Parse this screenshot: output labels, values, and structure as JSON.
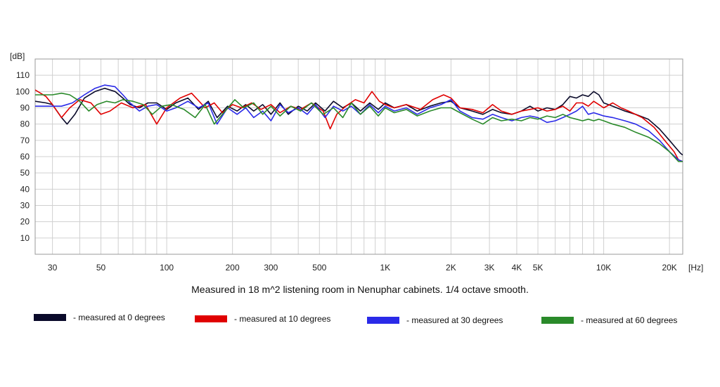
{
  "chart_data": {
    "type": "line",
    "title": "Measured in 18 m^2 listening room in Nenuphar cabinets. 1/4 octave smooth.",
    "ylabel": "[dB]",
    "xunit": "[Hz]",
    "xscale": "log",
    "xlim": [
      25,
      23000
    ],
    "ylim": [
      0,
      120
    ],
    "grid": true,
    "y_ticks": [
      {
        "v": 10,
        "label": "10"
      },
      {
        "v": 20,
        "label": "20"
      },
      {
        "v": 30,
        "label": "30"
      },
      {
        "v": 40,
        "label": "40"
      },
      {
        "v": 50,
        "label": "50"
      },
      {
        "v": 60,
        "label": "60"
      },
      {
        "v": 70,
        "label": "70"
      },
      {
        "v": 80,
        "label": "80"
      },
      {
        "v": 90,
        "label": "90"
      },
      {
        "v": 100,
        "label": "100"
      },
      {
        "v": 110,
        "label": "110"
      }
    ],
    "x_ticks": [
      {
        "v": 30,
        "label": "30"
      },
      {
        "v": 50,
        "label": "50"
      },
      {
        "v": 100,
        "label": "100"
      },
      {
        "v": 200,
        "label": "200"
      },
      {
        "v": 300,
        "label": "300"
      },
      {
        "v": 500,
        "label": "500"
      },
      {
        "v": 1000,
        "label": "1K"
      },
      {
        "v": 2000,
        "label": "2K"
      },
      {
        "v": 3000,
        "label": "3K"
      },
      {
        "v": 4000,
        "label": "4K"
      },
      {
        "v": 5000,
        "label": "5K"
      },
      {
        "v": 10000,
        "label": "10K"
      },
      {
        "v": 20000,
        "label": "20K"
      }
    ],
    "legend_position": "bottom",
    "series": [
      {
        "name": "- measured at 0 degrees",
        "color": "#0a0a2a",
        "points": [
          [
            25,
            94
          ],
          [
            28,
            93
          ],
          [
            30,
            92
          ],
          [
            33,
            84
          ],
          [
            35,
            80
          ],
          [
            38,
            86
          ],
          [
            42,
            96
          ],
          [
            47,
            100
          ],
          [
            52,
            102
          ],
          [
            58,
            100
          ],
          [
            63,
            96
          ],
          [
            68,
            92
          ],
          [
            75,
            90
          ],
          [
            82,
            93
          ],
          [
            90,
            93
          ],
          [
            100,
            89
          ],
          [
            110,
            93
          ],
          [
            125,
            96
          ],
          [
            140,
            89
          ],
          [
            155,
            94
          ],
          [
            170,
            84
          ],
          [
            190,
            91
          ],
          [
            210,
            88
          ],
          [
            230,
            92
          ],
          [
            250,
            88
          ],
          [
            275,
            92
          ],
          [
            300,
            86
          ],
          [
            330,
            93
          ],
          [
            360,
            86
          ],
          [
            400,
            91
          ],
          [
            440,
            88
          ],
          [
            480,
            93
          ],
          [
            530,
            88
          ],
          [
            580,
            94
          ],
          [
            640,
            90
          ],
          [
            700,
            93
          ],
          [
            770,
            88
          ],
          [
            850,
            93
          ],
          [
            930,
            89
          ],
          [
            1000,
            93
          ],
          [
            1100,
            90
          ],
          [
            1250,
            92
          ],
          [
            1400,
            88
          ],
          [
            1600,
            91
          ],
          [
            1800,
            93
          ],
          [
            2000,
            94
          ],
          [
            2200,
            90
          ],
          [
            2500,
            88
          ],
          [
            2800,
            86
          ],
          [
            3100,
            89
          ],
          [
            3400,
            87
          ],
          [
            3800,
            86
          ],
          [
            4200,
            88
          ],
          [
            4600,
            91
          ],
          [
            5000,
            88
          ],
          [
            5500,
            90
          ],
          [
            6000,
            89
          ],
          [
            6500,
            92
          ],
          [
            7000,
            97
          ],
          [
            7500,
            96
          ],
          [
            8000,
            98
          ],
          [
            8500,
            97
          ],
          [
            9000,
            100
          ],
          [
            9500,
            98
          ],
          [
            10000,
            93
          ],
          [
            11000,
            91
          ],
          [
            12500,
            88
          ],
          [
            14000,
            86
          ],
          [
            16000,
            83
          ],
          [
            18000,
            77
          ],
          [
            20000,
            70
          ],
          [
            21500,
            65
          ],
          [
            22500,
            62
          ],
          [
            23000,
            61
          ]
        ]
      },
      {
        "name": "- measured at 10 degrees",
        "color": "#e00000",
        "points": [
          [
            25,
            101
          ],
          [
            28,
            97
          ],
          [
            30,
            92
          ],
          [
            33,
            84
          ],
          [
            36,
            90
          ],
          [
            40,
            95
          ],
          [
            45,
            93
          ],
          [
            50,
            86
          ],
          [
            55,
            88
          ],
          [
            62,
            93
          ],
          [
            70,
            90
          ],
          [
            80,
            92
          ],
          [
            90,
            80
          ],
          [
            100,
            90
          ],
          [
            115,
            96
          ],
          [
            130,
            99
          ],
          [
            150,
            90
          ],
          [
            165,
            93
          ],
          [
            180,
            87
          ],
          [
            200,
            92
          ],
          [
            220,
            90
          ],
          [
            245,
            93
          ],
          [
            270,
            89
          ],
          [
            300,
            92
          ],
          [
            330,
            87
          ],
          [
            370,
            91
          ],
          [
            410,
            89
          ],
          [
            460,
            93
          ],
          [
            520,
            88
          ],
          [
            560,
            77
          ],
          [
            600,
            86
          ],
          [
            660,
            91
          ],
          [
            730,
            95
          ],
          [
            800,
            93
          ],
          [
            870,
            100
          ],
          [
            940,
            94
          ],
          [
            1000,
            92
          ],
          [
            1100,
            90
          ],
          [
            1250,
            92
          ],
          [
            1450,
            89
          ],
          [
            1650,
            95
          ],
          [
            1850,
            98
          ],
          [
            2000,
            96
          ],
          [
            2200,
            90
          ],
          [
            2500,
            89
          ],
          [
            2800,
            87
          ],
          [
            3100,
            92
          ],
          [
            3400,
            88
          ],
          [
            3800,
            86
          ],
          [
            4200,
            88
          ],
          [
            4600,
            89
          ],
          [
            5000,
            90
          ],
          [
            5500,
            88
          ],
          [
            6000,
            89
          ],
          [
            6500,
            91
          ],
          [
            7000,
            88
          ],
          [
            7500,
            93
          ],
          [
            8000,
            93
          ],
          [
            8500,
            91
          ],
          [
            9000,
            94
          ],
          [
            9500,
            92
          ],
          [
            10000,
            90
          ],
          [
            11000,
            93
          ],
          [
            12000,
            90
          ],
          [
            13000,
            88
          ],
          [
            15000,
            84
          ],
          [
            17000,
            78
          ],
          [
            19000,
            70
          ],
          [
            21000,
            63
          ],
          [
            22000,
            58
          ],
          [
            23000,
            57
          ]
        ]
      },
      {
        "name": "- measured at 30 degrees",
        "color": "#2a2ae8",
        "points": [
          [
            25,
            91
          ],
          [
            28,
            91
          ],
          [
            30,
            91
          ],
          [
            33,
            91
          ],
          [
            37,
            93
          ],
          [
            42,
            98
          ],
          [
            47,
            102
          ],
          [
            52,
            104
          ],
          [
            58,
            103
          ],
          [
            63,
            98
          ],
          [
            68,
            93
          ],
          [
            75,
            88
          ],
          [
            82,
            91
          ],
          [
            90,
            92
          ],
          [
            100,
            88
          ],
          [
            110,
            90
          ],
          [
            125,
            94
          ],
          [
            140,
            90
          ],
          [
            155,
            93
          ],
          [
            170,
            80
          ],
          [
            190,
            90
          ],
          [
            210,
            86
          ],
          [
            230,
            90
          ],
          [
            250,
            84
          ],
          [
            275,
            88
          ],
          [
            300,
            82
          ],
          [
            330,
            92
          ],
          [
            360,
            87
          ],
          [
            400,
            90
          ],
          [
            440,
            86
          ],
          [
            480,
            92
          ],
          [
            530,
            84
          ],
          [
            580,
            91
          ],
          [
            640,
            88
          ],
          [
            700,
            91
          ],
          [
            770,
            86
          ],
          [
            850,
            92
          ],
          [
            930,
            87
          ],
          [
            1000,
            91
          ],
          [
            1100,
            88
          ],
          [
            1250,
            90
          ],
          [
            1400,
            86
          ],
          [
            1600,
            90
          ],
          [
            1800,
            92
          ],
          [
            2000,
            95
          ],
          [
            2200,
            88
          ],
          [
            2500,
            84
          ],
          [
            2800,
            83
          ],
          [
            3100,
            86
          ],
          [
            3400,
            84
          ],
          [
            3800,
            82
          ],
          [
            4200,
            84
          ],
          [
            4600,
            85
          ],
          [
            5000,
            84
          ],
          [
            5500,
            81
          ],
          [
            6000,
            82
          ],
          [
            6500,
            84
          ],
          [
            7000,
            86
          ],
          [
            7500,
            88
          ],
          [
            8000,
            91
          ],
          [
            8500,
            86
          ],
          [
            9000,
            87
          ],
          [
            9500,
            86
          ],
          [
            10000,
            85
          ],
          [
            11000,
            84
          ],
          [
            12500,
            82
          ],
          [
            14000,
            80
          ],
          [
            16000,
            76
          ],
          [
            18000,
            70
          ],
          [
            20000,
            63
          ],
          [
            22000,
            58
          ],
          [
            23000,
            57
          ]
        ]
      },
      {
        "name": "- measured at 60 degrees",
        "color": "#2a8a2a",
        "points": [
          [
            25,
            98
          ],
          [
            28,
            98
          ],
          [
            30,
            98
          ],
          [
            33,
            99
          ],
          [
            36,
            98
          ],
          [
            40,
            94
          ],
          [
            44,
            88
          ],
          [
            48,
            92
          ],
          [
            53,
            94
          ],
          [
            58,
            93
          ],
          [
            63,
            95
          ],
          [
            70,
            94
          ],
          [
            78,
            92
          ],
          [
            86,
            86
          ],
          [
            95,
            91
          ],
          [
            105,
            92
          ],
          [
            120,
            89
          ],
          [
            135,
            84
          ],
          [
            150,
            92
          ],
          [
            165,
            80
          ],
          [
            185,
            88
          ],
          [
            205,
            95
          ],
          [
            225,
            90
          ],
          [
            250,
            93
          ],
          [
            275,
            86
          ],
          [
            300,
            91
          ],
          [
            330,
            85
          ],
          [
            370,
            91
          ],
          [
            410,
            88
          ],
          [
            460,
            93
          ],
          [
            520,
            86
          ],
          [
            580,
            90
          ],
          [
            640,
            84
          ],
          [
            700,
            93
          ],
          [
            770,
            86
          ],
          [
            850,
            91
          ],
          [
            930,
            85
          ],
          [
            1000,
            90
          ],
          [
            1100,
            87
          ],
          [
            1250,
            89
          ],
          [
            1400,
            85
          ],
          [
            1600,
            88
          ],
          [
            1800,
            90
          ],
          [
            2000,
            90
          ],
          [
            2200,
            87
          ],
          [
            2500,
            83
          ],
          [
            2800,
            80
          ],
          [
            3100,
            84
          ],
          [
            3400,
            82
          ],
          [
            3800,
            83
          ],
          [
            4200,
            82
          ],
          [
            4600,
            84
          ],
          [
            5000,
            83
          ],
          [
            5500,
            85
          ],
          [
            6000,
            84
          ],
          [
            6500,
            86
          ],
          [
            7000,
            84
          ],
          [
            7500,
            83
          ],
          [
            8000,
            82
          ],
          [
            8500,
            83
          ],
          [
            9000,
            82
          ],
          [
            9500,
            83
          ],
          [
            10000,
            82
          ],
          [
            11000,
            80
          ],
          [
            12500,
            78
          ],
          [
            14000,
            75
          ],
          [
            16000,
            72
          ],
          [
            18000,
            68
          ],
          [
            20000,
            63
          ],
          [
            22000,
            57
          ],
          [
            23000,
            57
          ]
        ]
      }
    ]
  }
}
